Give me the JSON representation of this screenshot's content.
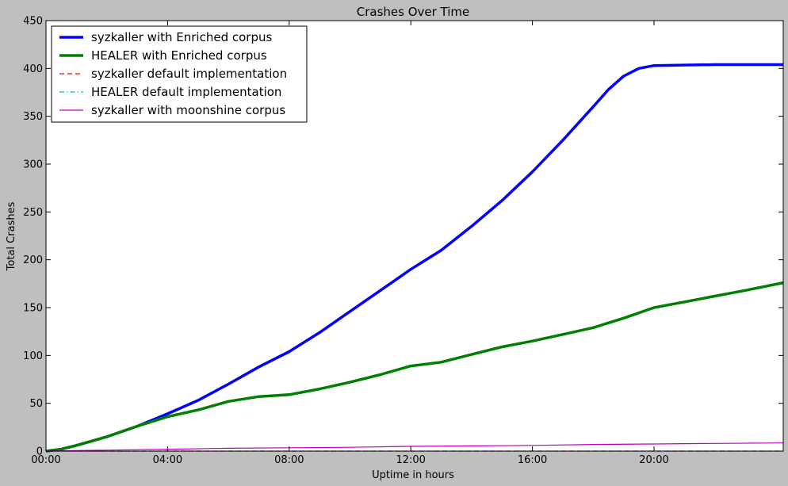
{
  "chart_data": {
    "type": "line",
    "title": "Crashes Over Time",
    "xlabel": "Uptime in hours",
    "ylabel": "Total Crashes",
    "xlim": [
      0,
      24.25
    ],
    "ylim": [
      0,
      450
    ],
    "x_ticks": [
      {
        "value": 0,
        "label": "00:00"
      },
      {
        "value": 4,
        "label": "04:00"
      },
      {
        "value": 8,
        "label": "08:00"
      },
      {
        "value": 12,
        "label": "12:00"
      },
      {
        "value": 16,
        "label": "16:00"
      },
      {
        "value": 20,
        "label": "20:00"
      }
    ],
    "y_ticks": [
      0,
      50,
      100,
      150,
      200,
      250,
      300,
      350,
      400,
      450
    ],
    "grid": false,
    "legend_position": "top-left",
    "series": [
      {
        "name": "syzkaller with Enriched corpus",
        "color": "#0000ff",
        "style": "solid-thick",
        "points": [
          [
            0,
            0
          ],
          [
            0.5,
            2
          ],
          [
            1,
            6
          ],
          [
            2,
            15
          ],
          [
            3,
            26
          ],
          [
            4,
            39
          ],
          [
            5,
            53
          ],
          [
            6,
            70
          ],
          [
            7,
            88
          ],
          [
            8,
            104
          ],
          [
            9,
            124
          ],
          [
            10,
            146
          ],
          [
            11,
            168
          ],
          [
            12,
            190
          ],
          [
            13,
            210
          ],
          [
            14,
            235
          ],
          [
            15,
            262
          ],
          [
            16,
            292
          ],
          [
            17,
            325
          ],
          [
            18,
            360
          ],
          [
            18.5,
            378
          ],
          [
            19,
            392
          ],
          [
            19.5,
            400
          ],
          [
            20,
            403
          ],
          [
            22,
            404
          ],
          [
            24.25,
            404
          ]
        ]
      },
      {
        "name": "HEALER with Enriched corpus",
        "color": "#008000",
        "style": "solid-thick",
        "points": [
          [
            0,
            0
          ],
          [
            0.5,
            2
          ],
          [
            1,
            6
          ],
          [
            2,
            15
          ],
          [
            3,
            26
          ],
          [
            4,
            36
          ],
          [
            5,
            43
          ],
          [
            6,
            52
          ],
          [
            7,
            57
          ],
          [
            8,
            59
          ],
          [
            9,
            65
          ],
          [
            10,
            72
          ],
          [
            11,
            80
          ],
          [
            12,
            89
          ],
          [
            13,
            93
          ],
          [
            14,
            101
          ],
          [
            15,
            109
          ],
          [
            16,
            115
          ],
          [
            17,
            122
          ],
          [
            18,
            129
          ],
          [
            19,
            139
          ],
          [
            20,
            150
          ],
          [
            21,
            156
          ],
          [
            22,
            162
          ],
          [
            23,
            168
          ],
          [
            24.25,
            176
          ]
        ]
      },
      {
        "name": "syzkaller default implementation",
        "color": "#ff0000",
        "style": "dashed",
        "points": [
          [
            0,
            0
          ],
          [
            24.25,
            0
          ]
        ]
      },
      {
        "name": "HEALER default implementation",
        "color": "#00bfbf",
        "style": "dashdot",
        "points": [
          [
            0,
            0
          ],
          [
            24.25,
            0
          ]
        ]
      },
      {
        "name": "syzkaller with moonshine corpus",
        "color": "#bf00bf",
        "style": "solid-thin",
        "points": [
          [
            0,
            0
          ],
          [
            2,
            1
          ],
          [
            4,
            2
          ],
          [
            6,
            3
          ],
          [
            8,
            3.5
          ],
          [
            10,
            4
          ],
          [
            12,
            5
          ],
          [
            14,
            5.5
          ],
          [
            16,
            6
          ],
          [
            18,
            7
          ],
          [
            20,
            7.5
          ],
          [
            22,
            8
          ],
          [
            24.25,
            8.5
          ]
        ]
      }
    ]
  }
}
